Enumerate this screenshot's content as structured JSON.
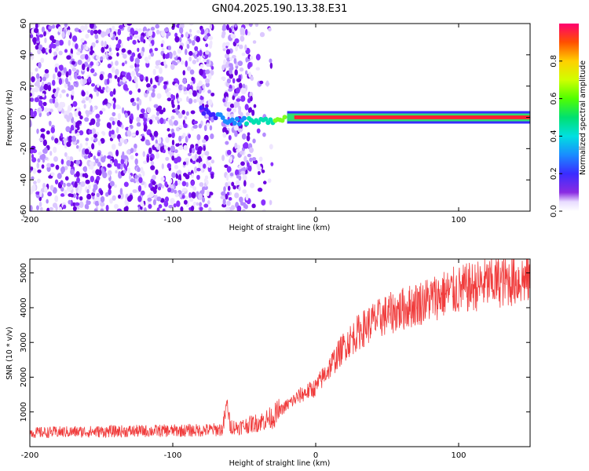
{
  "title": "GN04.2025.190.13.38.E31",
  "charts": [
    {
      "id": "spectrogram",
      "xlabel": "Height of straight line (km)",
      "ylabel": "Frequency (Hz)",
      "xticks": [
        "-200",
        "-100",
        "0",
        "100"
      ],
      "yticks": [
        "60",
        "40",
        "20",
        "0",
        "-20",
        "-40",
        "-60"
      ]
    },
    {
      "id": "snr",
      "xlabel": "Height of straight line (km)",
      "ylabel": "SNR (10 * v/v)",
      "xticks": [
        "-200",
        "-100",
        "0",
        "100"
      ],
      "yticks": [
        "5000",
        "4000",
        "3000",
        "2000",
        "1000"
      ]
    }
  ],
  "colorbar": {
    "label": "Normalized spectral amplitude",
    "ticks": [
      "0.0",
      "0.2",
      "0.4",
      "0.6",
      "0.8"
    ]
  },
  "chart_data": [
    {
      "type": "heatmap",
      "xlabel": "Height of straight line (km)",
      "ylabel": "Frequency (Hz)",
      "xlim": [
        -200,
        150
      ],
      "ylim": [
        -60,
        60
      ],
      "color_scale": "normalized spectral amplitude, 0 to 1 (rainbow: violet low, red high)",
      "description_points": [
        {
          "x": -200,
          "y_range": [
            -60,
            60
          ],
          "amplitude": 0.1
        },
        {
          "x": -100,
          "y_range": [
            -60,
            60
          ],
          "amplitude": 0.1
        },
        {
          "x": -80,
          "y": 5,
          "amplitude": 0.3
        },
        {
          "x": -60,
          "y": -2,
          "amplitude": 0.4
        },
        {
          "x": -40,
          "y": -3,
          "amplitude": 0.6
        },
        {
          "x": -20,
          "y": 0,
          "amplitude": 0.7
        },
        {
          "x": 0,
          "y": 0,
          "amplitude": 0.95
        },
        {
          "x": 50,
          "y": 0,
          "amplitude": 0.95
        },
        {
          "x": 100,
          "y": 0,
          "amplitude": 0.95
        },
        {
          "x": 150,
          "y": 0,
          "amplitude": 0.95
        }
      ]
    },
    {
      "type": "line",
      "xlabel": "Height of straight line (km)",
      "ylabel": "SNR (10 * v/v)",
      "xlim": [
        -200,
        150
      ],
      "ylim": [
        0,
        5400
      ],
      "color": "#f03c3c",
      "x": [
        -200,
        -180,
        -160,
        -140,
        -120,
        -100,
        -80,
        -65,
        -62,
        -60,
        -55,
        -40,
        -30,
        -20,
        -10,
        0,
        10,
        20,
        30,
        40,
        50,
        60,
        70,
        80,
        90,
        100,
        110,
        120,
        130,
        140,
        150
      ],
      "y": [
        400,
        420,
        430,
        440,
        450,
        460,
        470,
        500,
        1300,
        600,
        550,
        700,
        850,
        1200,
        1500,
        1700,
        2300,
        2900,
        3300,
        3600,
        3800,
        3950,
        4100,
        4250,
        4400,
        4500,
        4600,
        4700,
        4750,
        4800,
        4850
      ]
    }
  ]
}
